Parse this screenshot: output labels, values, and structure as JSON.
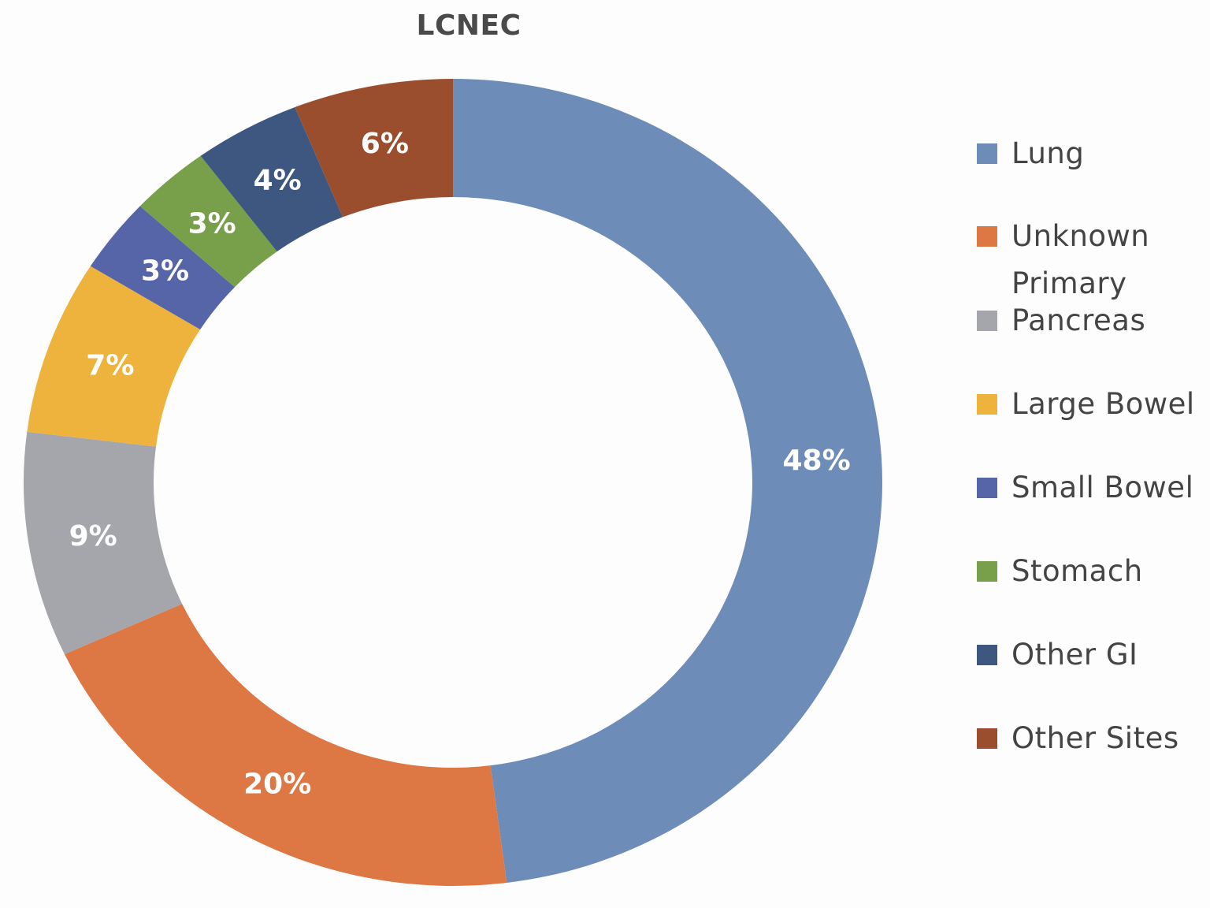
{
  "chart_data": {
    "type": "pie",
    "variant": "donut",
    "title": "LCNEC",
    "categories": [
      "Lung",
      "Unknown Primary",
      "Pancreas",
      "Large Bowel",
      "Small Bowel",
      "Stomach",
      "Other GI",
      "Other Sites"
    ],
    "values": [
      48,
      20,
      9,
      7,
      3,
      3,
      4,
      6
    ],
    "unit": "%",
    "labels": [
      "48%",
      "20%",
      "9%",
      "7%",
      "3%",
      "3%",
      "4%",
      "6%"
    ],
    "colors": [
      "#6d8cb8",
      "#dd7845",
      "#a4a6ab",
      "#edb33c",
      "#5565a8",
      "#78a04a",
      "#3d5781",
      "#9a4e2d"
    ],
    "legend_position": "right",
    "start_angle_deg": 0,
    "direction": "clockwise"
  },
  "legend": {
    "items": [
      {
        "label": "Lung",
        "color": "#6d8cb8"
      },
      {
        "label": "Unknown Primary",
        "color": "#dd7845"
      },
      {
        "label": "Pancreas",
        "color": "#a4a6ab"
      },
      {
        "label": "Large Bowel",
        "color": "#edb33c"
      },
      {
        "label": "Small Bowel",
        "color": "#5565a8"
      },
      {
        "label": "Stomach",
        "color": "#78a04a"
      },
      {
        "label": "Other GI",
        "color": "#3d5781"
      },
      {
        "label": "Other Sites",
        "color": "#9a4e2d"
      }
    ]
  }
}
